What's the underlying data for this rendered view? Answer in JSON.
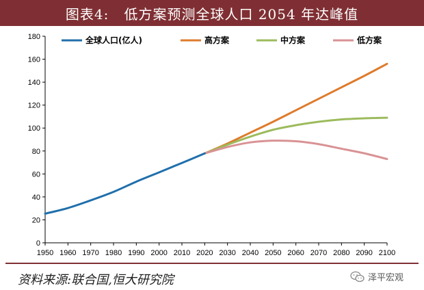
{
  "header": {
    "title": "图表4:   低方案预测全球人口 2054 年达峰值"
  },
  "footer": {
    "source": "资料来源:联合国,恒大研究院",
    "watermark": "泽平宏观",
    "watermark_icon": "wechat-icon"
  },
  "colors": {
    "header_bg": "#7f2f33",
    "population": "#1f6fab",
    "high": "#de7b2c",
    "medium": "#9cbb5c",
    "low": "#d99294"
  },
  "chart_data": {
    "type": "line",
    "title": "",
    "xlabel": "",
    "ylabel": "",
    "xlim": [
      1950,
      2100
    ],
    "ylim": [
      0,
      180
    ],
    "x_ticks": [
      1950,
      1960,
      1970,
      1980,
      1990,
      2000,
      2010,
      2020,
      2030,
      2040,
      2050,
      2060,
      2070,
      2080,
      2090,
      2100
    ],
    "y_ticks": [
      0,
      20,
      40,
      60,
      80,
      100,
      120,
      140,
      160,
      180
    ],
    "grid": false,
    "legend_position": "top",
    "series": [
      {
        "name": "全球人口(亿人)",
        "color": "#1f6fab",
        "x": [
          1950,
          1960,
          1970,
          1980,
          1990,
          2000,
          2010,
          2020
        ],
        "y": [
          25.4,
          30.3,
          37.0,
          44.4,
          53.3,
          61.4,
          69.6,
          77.9
        ]
      },
      {
        "name": "高方案",
        "color": "#de7b2c",
        "x": [
          2020,
          2030,
          2040,
          2050,
          2060,
          2070,
          2080,
          2090,
          2100
        ],
        "y": [
          77.9,
          86.5,
          96.0,
          105.5,
          115.5,
          125.5,
          135.5,
          145.5,
          156.0
        ]
      },
      {
        "name": "中方案",
        "color": "#9cbb5c",
        "x": [
          2020,
          2030,
          2040,
          2050,
          2060,
          2070,
          2080,
          2090,
          2100
        ],
        "y": [
          77.9,
          85.5,
          92.5,
          98.5,
          102.5,
          105.5,
          107.5,
          108.5,
          109.0
        ]
      },
      {
        "name": "低方案",
        "color": "#d99294",
        "x": [
          2020,
          2030,
          2040,
          2050,
          2060,
          2070,
          2080,
          2090,
          2100
        ],
        "y": [
          77.9,
          83.5,
          87.5,
          89.0,
          88.5,
          86.0,
          82.0,
          78.0,
          73.0
        ]
      }
    ]
  }
}
